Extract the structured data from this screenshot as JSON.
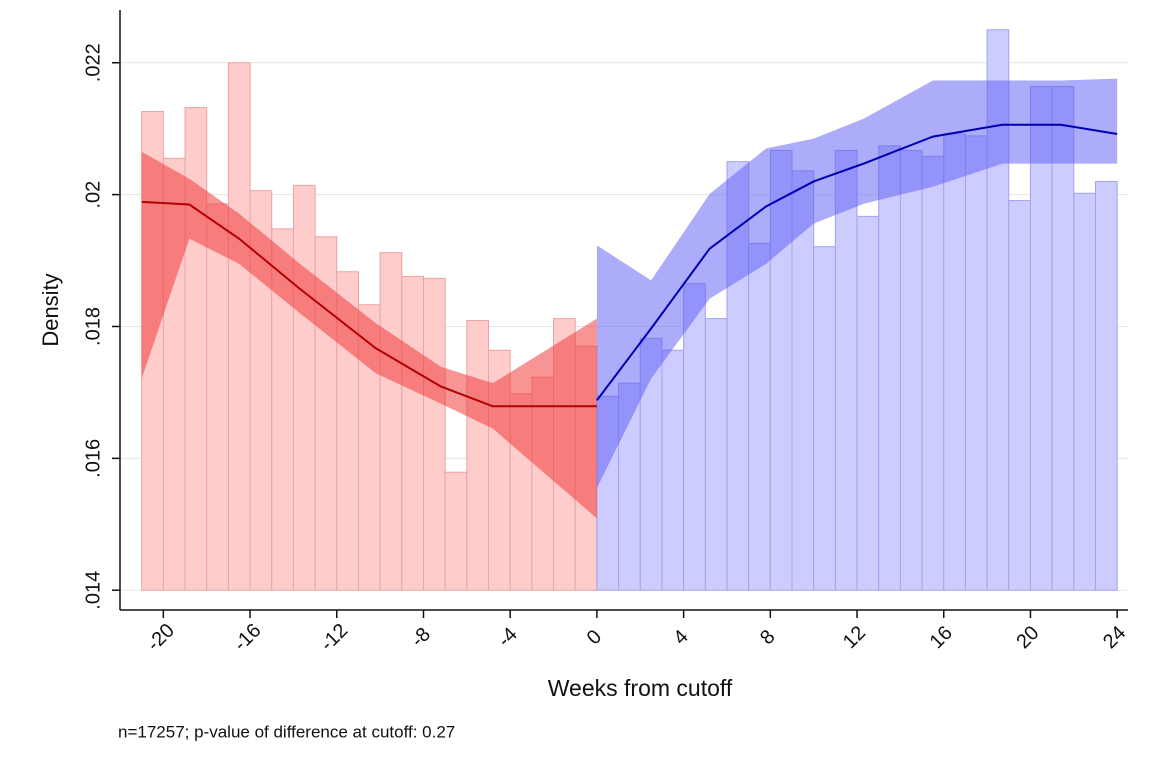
{
  "chart_data": {
    "type": "histogram",
    "xlabel": "Weeks from cutoff",
    "ylabel": "Density",
    "note": "n=17257; p-value of difference at cutoff: 0.27",
    "xlim": [
      -22,
      24.5
    ],
    "ylim": [
      0.0137,
      0.0228
    ],
    "xticks": [
      -20,
      -16,
      -12,
      -8,
      -4,
      0,
      4,
      8,
      12,
      16,
      20,
      24
    ],
    "yticks": [
      {
        "value": 0.014,
        "label": ".014"
      },
      {
        "value": 0.016,
        "label": ".016"
      },
      {
        "value": 0.018,
        "label": ".018"
      },
      {
        "value": 0.02,
        "label": ".02"
      },
      {
        "value": 0.022,
        "label": ".022"
      }
    ],
    "grid": true,
    "histograms": [
      {
        "color": "#ffcccc",
        "edge_color": "#eba3a3",
        "bins": [
          -21,
          -20,
          -19,
          -18,
          -17,
          -16,
          -15,
          -14,
          -13,
          -12,
          -11,
          -10,
          -9,
          -8,
          -7,
          -6,
          -5,
          -4,
          -3,
          -2,
          -1,
          0
        ],
        "values": [
          0.02126,
          0.02055,
          0.02132,
          0.01986,
          0.022,
          0.02006,
          0.01948,
          0.02014,
          0.01936,
          0.01883,
          0.01833,
          0.01912,
          0.01876,
          0.01873,
          0.01579,
          0.01809,
          0.01764,
          0.01698,
          0.01723,
          0.01812,
          0.0177
        ]
      },
      {
        "color": "#ccccff",
        "edge_color": "#a3a3eb",
        "bins": [
          0,
          1,
          2,
          3,
          4,
          5,
          6,
          7,
          8,
          9,
          10,
          11,
          12,
          13,
          14,
          15,
          16,
          17,
          18,
          19,
          20,
          21,
          22,
          23,
          24
        ],
        "values": [
          0.01694,
          0.01714,
          0.01782,
          0.01764,
          0.01865,
          0.01812,
          0.0205,
          0.01926,
          0.02067,
          0.02036,
          0.01921,
          0.02067,
          0.01967,
          0.02074,
          0.02067,
          0.02058,
          0.02092,
          0.02089,
          0.0225,
          0.01991,
          0.02164,
          0.02164,
          0.02002,
          0.0202
        ]
      }
    ],
    "fits": [
      {
        "color": "#b30000",
        "band_color": "rgba(240,60,60,0.55)",
        "x": [
          -21,
          -18.8,
          -16.5,
          -13.7,
          -10.2,
          -7.2,
          -4.8,
          0
        ],
        "values": [
          0.01989,
          0.01985,
          0.01933,
          0.01857,
          0.01767,
          0.01709,
          0.01679,
          0.01679
        ],
        "lower": [
          0.01721,
          0.01933,
          0.01895,
          0.0182,
          0.01729,
          0.01683,
          0.01645,
          0.01509
        ],
        "upper": [
          0.02065,
          0.02024,
          0.01971,
          0.01895,
          0.01805,
          0.01739,
          0.01714,
          0.01812
        ]
      },
      {
        "color": "#0000b3",
        "band_color": "rgba(90,90,245,0.5)",
        "x": [
          0,
          2.5,
          5.2,
          7.8,
          10,
          12.3,
          15.5,
          18.7,
          21.4,
          24
        ],
        "values": [
          0.01688,
          0.01797,
          0.01918,
          0.01982,
          0.0202,
          0.02047,
          0.02088,
          0.02106,
          0.02106,
          0.02092
        ],
        "lower": [
          0.01555,
          0.01721,
          0.01842,
          0.01895,
          0.01956,
          0.01986,
          0.02012,
          0.02047,
          0.02047,
          0.02047
        ],
        "upper": [
          0.01923,
          0.0187,
          0.02001,
          0.0207,
          0.02085,
          0.02115,
          0.02173,
          0.02173,
          0.02173,
          0.02176
        ]
      }
    ]
  }
}
